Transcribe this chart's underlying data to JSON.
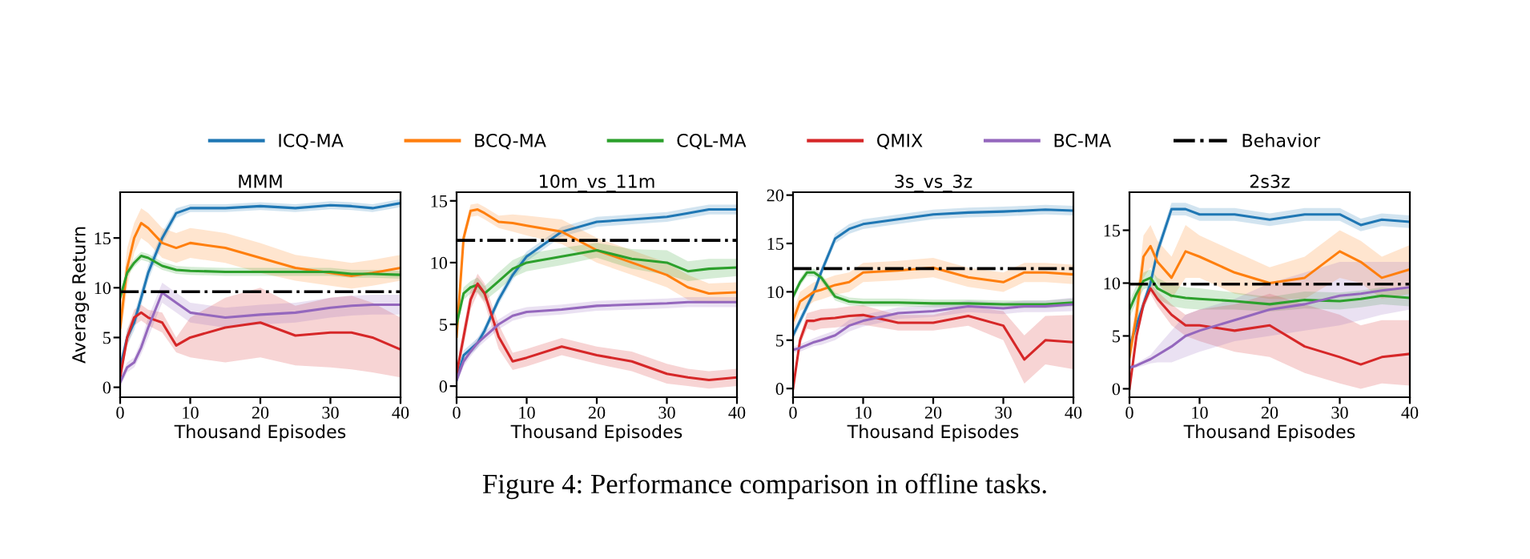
{
  "chart_data": [
    {
      "type": "line",
      "title": "MMM",
      "xlabel": "Thousand Episodes",
      "ylabel": "Average Return",
      "legend": "top",
      "grid": false,
      "annotations": [
        "Figure 4: Performance comparison in offline tasks."
      ],
      "x": [
        0,
        1,
        2,
        3,
        4,
        6,
        8,
        10,
        15,
        20,
        25,
        30,
        33,
        36,
        40
      ],
      "xlim": [
        0,
        40
      ],
      "xticks": [
        0,
        10,
        20,
        30,
        40
      ],
      "ylim": [
        -1,
        19.6
      ],
      "yticks": [
        0,
        5,
        10,
        15
      ],
      "ref_lines": [
        {
          "axis": "y",
          "value": 9.6,
          "label": "Behavior",
          "color": "#000000",
          "line_style": "dashdot"
        }
      ],
      "series": [
        {
          "name": "ICQ-MA",
          "color": "#1f77b4",
          "values": [
            2,
            5,
            6.5,
            9,
            11.5,
            15,
            17.5,
            18,
            18,
            18.2,
            18,
            18.3,
            18.2,
            18,
            18.5
          ],
          "lower": [
            1.5,
            4.2,
            5.7,
            8.2,
            10.7,
            14.4,
            17.0,
            17.6,
            17.6,
            17.8,
            17.6,
            17.9,
            17.8,
            17.6,
            18.1
          ],
          "upper": [
            2.5,
            5.8,
            7.3,
            9.8,
            12.3,
            15.6,
            18.0,
            18.4,
            18.4,
            18.6,
            18.4,
            18.7,
            18.6,
            18.4,
            18.9
          ]
        },
        {
          "name": "BCQ-MA",
          "color": "#ff7f0e",
          "values": [
            6,
            12,
            15,
            16.5,
            16,
            14.5,
            14,
            14.5,
            14,
            13,
            12,
            11.5,
            11.2,
            11.5,
            12
          ],
          "lower": [
            4.5,
            10,
            13.5,
            15,
            14.5,
            13,
            12.5,
            13,
            12.5,
            11.5,
            10.7,
            10.2,
            9.9,
            10.2,
            10.7
          ],
          "upper": [
            7.5,
            14,
            16.5,
            18,
            17.5,
            16,
            15.5,
            16,
            15.5,
            14.5,
            13.3,
            12.8,
            12.5,
            12.8,
            13.3
          ]
        },
        {
          "name": "CQL-MA",
          "color": "#2ca02c",
          "values": [
            9,
            11.5,
            12.5,
            13.2,
            13,
            12.2,
            11.8,
            11.7,
            11.6,
            11.6,
            11.6,
            11.6,
            11.4,
            11.4,
            11.3
          ],
          "lower": [
            8.6,
            11.1,
            12.1,
            12.8,
            12.6,
            11.8,
            11.4,
            11.3,
            11.2,
            11.2,
            11.2,
            11.2,
            11,
            11,
            10.9
          ],
          "upper": [
            9.4,
            11.9,
            12.9,
            13.6,
            13.4,
            12.6,
            12.2,
            12.1,
            12,
            12,
            12,
            12,
            11.8,
            11.8,
            11.7
          ]
        },
        {
          "name": "QMIX",
          "color": "#d62728",
          "values": [
            1,
            5,
            7,
            7.5,
            7,
            6.5,
            4.2,
            5,
            6,
            6.5,
            5.2,
            5.5,
            5.5,
            5,
            3.8
          ],
          "lower": [
            0.5,
            4.2,
            6.2,
            6.7,
            6.2,
            5.5,
            3.5,
            3,
            2.5,
            3,
            2.2,
            2,
            1.8,
            1.5,
            1
          ],
          "upper": [
            1.5,
            5.8,
            7.8,
            8.3,
            7.8,
            7.5,
            5,
            7,
            9,
            10,
            8.2,
            9,
            9.2,
            8.5,
            7
          ]
        },
        {
          "name": "BC-MA",
          "color": "#9467bd",
          "values": [
            0.5,
            2,
            2.5,
            4,
            6,
            9.5,
            8.5,
            7.5,
            7,
            7.3,
            7.5,
            8,
            8.2,
            8.3,
            8.3
          ],
          "lower": [
            0,
            1.5,
            2,
            3.3,
            5,
            8.5,
            7.5,
            6.5,
            6,
            6.3,
            6.5,
            7,
            7.2,
            7.3,
            7.3
          ],
          "upper": [
            1,
            2.5,
            3,
            4.7,
            7,
            10.5,
            9.5,
            8.5,
            8,
            8.3,
            8.5,
            9,
            9.2,
            9.3,
            9.3
          ]
        }
      ]
    },
    {
      "type": "line",
      "title": "10m_vs_11m",
      "xlabel": "Thousand Episodes",
      "grid": false,
      "x": [
        0,
        1,
        2,
        3,
        4,
        6,
        8,
        10,
        15,
        20,
        25,
        30,
        33,
        36,
        40
      ],
      "xlim": [
        0,
        40
      ],
      "xticks": [
        0,
        10,
        20,
        30,
        40
      ],
      "ylim": [
        -0.9,
        15.7
      ],
      "yticks": [
        0,
        5,
        10,
        15
      ],
      "ref_lines": [
        {
          "axis": "y",
          "value": 11.8,
          "color": "#000000",
          "line_style": "dashdot"
        }
      ],
      "series": [
        {
          "name": "ICQ-MA",
          "color": "#1f77b4",
          "values": [
            0.5,
            2.5,
            3,
            3.5,
            4.5,
            7,
            9,
            10.5,
            12.5,
            13.3,
            13.5,
            13.7,
            14,
            14.3,
            14.3
          ],
          "lower": [
            0.1,
            2.1,
            2.6,
            3.1,
            4.1,
            6.6,
            8.6,
            10.1,
            12.1,
            12.9,
            13.1,
            13.3,
            13.6,
            13.9,
            13.9
          ],
          "upper": [
            0.9,
            2.9,
            3.4,
            3.9,
            4.9,
            7.4,
            9.4,
            10.9,
            12.9,
            13.7,
            13.9,
            14.1,
            14.4,
            14.7,
            14.7
          ]
        },
        {
          "name": "BCQ-MA",
          "color": "#ff7f0e",
          "values": [
            4,
            12,
            14.2,
            14.3,
            14,
            13.3,
            13.2,
            13,
            12.5,
            11,
            10,
            9,
            8,
            7.5,
            7.6
          ],
          "lower": [
            3.5,
            11.5,
            13.7,
            13.8,
            13.5,
            12.8,
            12.5,
            12.2,
            11.5,
            10,
            9,
            8,
            7,
            6.7,
            6.8
          ],
          "upper": [
            4.5,
            12.5,
            14.7,
            14.8,
            14.5,
            13.8,
            13.9,
            13.8,
            13.5,
            12,
            11,
            10,
            9,
            8.3,
            8.4
          ]
        },
        {
          "name": "CQL-MA",
          "color": "#2ca02c",
          "values": [
            5,
            7.5,
            8,
            8.2,
            7.5,
            8.5,
            9.5,
            10,
            10.5,
            11,
            10.3,
            10,
            9.3,
            9.5,
            9.6
          ],
          "lower": [
            4.5,
            7,
            7.5,
            7.6,
            6.9,
            7.8,
            8.8,
            9.3,
            9.8,
            10.4,
            9.5,
            9,
            8.5,
            8.7,
            8.9
          ],
          "upper": [
            5.5,
            8,
            8.5,
            8.8,
            8.1,
            9.2,
            10.2,
            10.7,
            11.2,
            11.6,
            11.1,
            11,
            10.1,
            10.3,
            10.3
          ]
        },
        {
          "name": "QMIX",
          "color": "#d62728",
          "values": [
            1,
            4,
            7,
            8.3,
            7.5,
            4,
            2,
            2.3,
            3.2,
            2.5,
            2,
            1,
            0.7,
            0.5,
            0.7
          ],
          "lower": [
            0.5,
            3.2,
            6.2,
            7.5,
            6.7,
            3,
            1.3,
            1.6,
            2.5,
            1.8,
            1.2,
            0.2,
            0,
            -0.2,
            0
          ],
          "upper": [
            1.5,
            4.8,
            7.8,
            9.1,
            8.3,
            5,
            2.7,
            3,
            3.9,
            3.2,
            2.8,
            1.8,
            1.4,
            1.2,
            1.4
          ]
        },
        {
          "name": "BC-MA",
          "color": "#9467bd",
          "values": [
            0.5,
            2,
            2.8,
            3.5,
            4,
            5,
            5.7,
            6,
            6.2,
            6.5,
            6.6,
            6.7,
            6.8,
            6.8,
            6.8
          ],
          "lower": [
            0.1,
            1.6,
            2.4,
            3.1,
            3.6,
            4.6,
            5.3,
            5.6,
            5.8,
            6.1,
            6.2,
            6.3,
            6.4,
            6.4,
            6.4
          ],
          "upper": [
            0.9,
            2.4,
            3.2,
            3.9,
            4.4,
            5.4,
            6.1,
            6.4,
            6.6,
            6.9,
            7,
            7.1,
            7.2,
            7.2,
            7.2
          ]
        }
      ]
    },
    {
      "type": "line",
      "title": "3s_vs_3z",
      "xlabel": "Thousand Episodes",
      "grid": false,
      "x": [
        0,
        1,
        2,
        3,
        4,
        6,
        8,
        10,
        15,
        20,
        25,
        30,
        33,
        36,
        40
      ],
      "xlim": [
        0,
        40
      ],
      "xticks": [
        0,
        10,
        20,
        30,
        40
      ],
      "ylim": [
        -0.9,
        20.3
      ],
      "yticks": [
        0,
        5,
        10,
        15,
        20
      ],
      "ref_lines": [
        {
          "axis": "y",
          "value": 12.4,
          "color": "#000000",
          "line_style": "dashdot"
        }
      ],
      "series": [
        {
          "name": "ICQ-MA",
          "color": "#1f77b4",
          "values": [
            5.5,
            7,
            8.5,
            10,
            12,
            15.5,
            16.5,
            17,
            17.5,
            18,
            18.2,
            18.3,
            18.4,
            18.5,
            18.4
          ],
          "lower": [
            5,
            6.5,
            8,
            9.5,
            11.5,
            15,
            16,
            16.5,
            17,
            17.5,
            17.7,
            17.8,
            17.9,
            18,
            17.9
          ],
          "upper": [
            6,
            7.5,
            9,
            10.5,
            12.5,
            16,
            17,
            17.5,
            18,
            18.5,
            18.7,
            18.8,
            18.9,
            19,
            18.9
          ]
        },
        {
          "name": "BCQ-MA",
          "color": "#ff7f0e",
          "values": [
            7,
            9,
            9.5,
            10,
            10.2,
            10.7,
            11,
            12,
            12.2,
            12.5,
            11.5,
            11,
            12,
            12,
            11.8
          ],
          "lower": [
            6,
            8,
            8.5,
            9,
            9.2,
            9.7,
            10,
            11,
            11.2,
            11.5,
            10.5,
            10,
            11,
            11,
            10.8
          ],
          "upper": [
            8,
            10,
            10.5,
            11,
            11.2,
            11.7,
            12,
            13,
            13.2,
            13.5,
            12.5,
            12,
            13,
            13,
            12.8
          ]
        },
        {
          "name": "CQL-MA",
          "color": "#2ca02c",
          "values": [
            9.5,
            11,
            12,
            12,
            11.5,
            9.5,
            9,
            8.9,
            8.9,
            8.8,
            8.8,
            8.7,
            8.7,
            8.7,
            8.9
          ],
          "lower": [
            9.1,
            10.6,
            11.6,
            11.6,
            11.1,
            9.1,
            8.6,
            8.5,
            8.5,
            8.4,
            8.4,
            8.3,
            8.3,
            8.3,
            8.5
          ],
          "upper": [
            9.9,
            11.4,
            12.4,
            12.4,
            11.9,
            9.9,
            9.4,
            9.3,
            9.3,
            9.2,
            9.2,
            9.1,
            9.1,
            9.1,
            9.3
          ]
        },
        {
          "name": "QMIX",
          "color": "#d62728",
          "values": [
            0,
            5,
            7,
            7,
            7.2,
            7.3,
            7.5,
            7.6,
            6.8,
            6.8,
            7.5,
            6.5,
            3,
            5,
            4.8
          ],
          "lower": [
            0,
            4.5,
            6.2,
            6,
            6.2,
            6.3,
            6.5,
            6.6,
            6,
            6,
            6.5,
            5,
            0.5,
            2.5,
            2
          ],
          "upper": [
            0,
            5.5,
            7.8,
            8,
            8.2,
            8.3,
            8.5,
            8.6,
            7.6,
            7.6,
            8.5,
            8,
            5.5,
            7.5,
            7.6
          ]
        },
        {
          "name": "BC-MA",
          "color": "#9467bd",
          "values": [
            4,
            4.2,
            4.5,
            4.8,
            5,
            5.5,
            6.5,
            7,
            7.8,
            8,
            8.5,
            8.3,
            8.5,
            8.5,
            8.7
          ],
          "lower": [
            3.7,
            3.8,
            4.1,
            4.4,
            4.5,
            5,
            5.9,
            6.4,
            7.2,
            7.4,
            7.9,
            7.7,
            7.9,
            7.9,
            8
          ],
          "upper": [
            4.3,
            4.6,
            4.9,
            5.2,
            5.5,
            6,
            7.1,
            7.6,
            8.4,
            8.6,
            9.1,
            8.9,
            9.1,
            9.1,
            9.4
          ]
        }
      ]
    },
    {
      "type": "line",
      "title": "2s3z",
      "xlabel": "Thousand Episodes",
      "grid": false,
      "x": [
        0,
        1,
        2,
        3,
        4,
        6,
        8,
        10,
        15,
        20,
        25,
        30,
        33,
        36,
        40
      ],
      "xlim": [
        0,
        40
      ],
      "xticks": [
        0,
        10,
        20,
        30,
        40
      ],
      "ylim": [
        -0.8,
        18.6
      ],
      "yticks": [
        0,
        5,
        10,
        15
      ],
      "ref_lines": [
        {
          "axis": "y",
          "value": 9.9,
          "color": "#000000",
          "line_style": "dashdot"
        }
      ],
      "series": [
        {
          "name": "ICQ-MA",
          "color": "#1f77b4",
          "values": [
            4,
            6,
            8,
            10,
            13,
            17,
            17,
            16.5,
            16.5,
            16,
            16.5,
            16.5,
            15.5,
            16,
            15.8
          ],
          "lower": [
            3.4,
            5.4,
            7.4,
            9.4,
            12.4,
            16.4,
            16.4,
            15.9,
            15.9,
            15.4,
            15.9,
            15.9,
            14.9,
            15.4,
            15.2
          ],
          "upper": [
            4.6,
            6.6,
            8.6,
            10.6,
            13.6,
            17.6,
            17.6,
            17.1,
            17.1,
            16.6,
            17.1,
            17.1,
            16.1,
            16.6,
            16.4
          ]
        },
        {
          "name": "BCQ-MA",
          "color": "#ff7f0e",
          "values": [
            3,
            7,
            12.5,
            13.5,
            12,
            10.5,
            13,
            12.5,
            11,
            10,
            10.5,
            13,
            12,
            10.5,
            11.3
          ],
          "lower": [
            2,
            5.5,
            10.5,
            11.5,
            10,
            8.5,
            10.5,
            10.5,
            9,
            8.5,
            8.5,
            10.5,
            10,
            8.5,
            9
          ],
          "upper": [
            4,
            8.5,
            14.5,
            15.5,
            14,
            12.5,
            15.5,
            14.5,
            13,
            11.5,
            12.5,
            15,
            14,
            12.5,
            13.6
          ]
        },
        {
          "name": "CQL-MA",
          "color": "#2ca02c",
          "values": [
            7.5,
            9,
            10.2,
            10.5,
            9.5,
            8.8,
            8.6,
            8.5,
            8.3,
            8,
            8.4,
            8.3,
            8.5,
            8.8,
            8.6
          ],
          "lower": [
            6.7,
            8.2,
            9.4,
            9.7,
            8.5,
            7.8,
            7.6,
            7.5,
            7.5,
            7.3,
            7.6,
            7.5,
            7.7,
            8,
            7.8
          ],
          "upper": [
            8.3,
            9.8,
            11,
            11.3,
            10.5,
            9.8,
            9.6,
            9.5,
            9.1,
            8.7,
            9.2,
            9.1,
            9.3,
            9.6,
            9.4
          ]
        },
        {
          "name": "QMIX",
          "color": "#d62728",
          "values": [
            0,
            5,
            8,
            9.5,
            8.5,
            7,
            6,
            6,
            5.5,
            6,
            4,
            3,
            2.3,
            3,
            3.3
          ],
          "lower": [
            0,
            4.5,
            7.5,
            9,
            7.8,
            6,
            5,
            4.5,
            3.5,
            3,
            1.5,
            0.5,
            0,
            0.5,
            0.3
          ],
          "upper": [
            0,
            5.5,
            8.5,
            10,
            9.2,
            8,
            7,
            7.5,
            8,
            9,
            8,
            7,
            6,
            6.5,
            6.5
          ]
        },
        {
          "name": "BC-MA",
          "color": "#9467bd",
          "values": [
            2,
            2.2,
            2.5,
            2.8,
            3.2,
            4,
            5,
            5.5,
            6.5,
            7.5,
            8,
            8.8,
            9,
            9.3,
            9.6
          ],
          "lower": [
            1.8,
            2,
            2.2,
            2.4,
            2.5,
            2.5,
            3,
            3.5,
            4.5,
            5,
            5.5,
            6,
            6.5,
            7,
            7.5
          ],
          "upper": [
            2.2,
            2.4,
            2.8,
            3.2,
            4,
            5.5,
            7,
            7.5,
            8.5,
            10,
            11,
            12,
            12,
            12,
            12
          ]
        }
      ]
    }
  ]
}
